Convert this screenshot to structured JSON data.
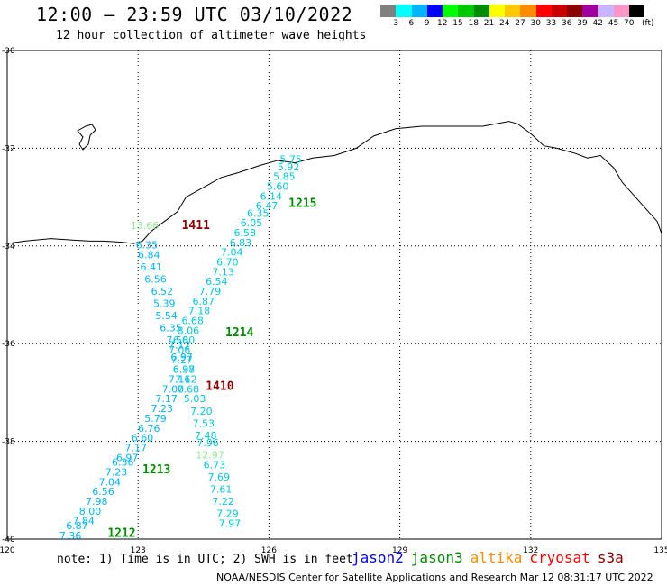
{
  "header": {
    "title": "12:00 – 23:59 UTC 03/10/2022",
    "subtitle": "12 hour collection of altimeter wave heights"
  },
  "legend": {
    "unit": "(ft)",
    "colors": [
      "#808080",
      "#00ffff",
      "#00b4ff",
      "#0000ff",
      "#00ff00",
      "#00c800",
      "#008c00",
      "#ffff00",
      "#ffc800",
      "#ff8c00",
      "#ff0000",
      "#c80000",
      "#8c0000",
      "#a000a0",
      "#c8b4ff",
      "#ff96c8",
      "#000000"
    ],
    "labels": [
      "3",
      "6",
      "9",
      "12",
      "15",
      "18",
      "21",
      "24",
      "27",
      "30",
      "33",
      "36",
      "39",
      "42",
      "45",
      "70"
    ]
  },
  "axes": {
    "lon_ticks": [
      "120",
      "123",
      "126",
      "129",
      "132",
      "135"
    ],
    "lat_ticks": [
      "-30",
      "-32",
      "-34",
      "-36",
      "-38",
      "-40"
    ]
  },
  "track_labels": [
    {
      "text": "1215",
      "color": "#008c00",
      "lon": 126.45,
      "lat": -33.2
    },
    {
      "text": "1411",
      "color": "#8c0000",
      "lon": 124.0,
      "lat": -33.65
    },
    {
      "text": "1214",
      "color": "#008c00",
      "lon": 125.0,
      "lat": -35.85
    },
    {
      "text": "1410",
      "color": "#8c0000",
      "lon": 124.55,
      "lat": -36.95
    },
    {
      "text": "1213",
      "color": "#008c00",
      "lon": 123.1,
      "lat": -38.65
    },
    {
      "text": "1212",
      "color": "#008c00",
      "lon": 122.3,
      "lat": -39.95
    }
  ],
  "chart_data": {
    "type": "scatter",
    "title": "12:00 – 23:59 UTC 03/10/2022",
    "xlim": [
      120,
      135
    ],
    "ylim": [
      -40,
      -30
    ],
    "grid": true,
    "series": [
      {
        "name": "jason2",
        "color": "#00b4ff",
        "points": [
          {
            "lon": 123.2,
            "lat": -34.05,
            "swh": "6.35"
          },
          {
            "lon": 123.25,
            "lat": -34.25,
            "swh": "6.84"
          },
          {
            "lon": 123.3,
            "lat": -34.5,
            "swh": "6.41"
          },
          {
            "lon": 123.4,
            "lat": -34.75,
            "swh": "6.56"
          },
          {
            "lon": 123.55,
            "lat": -35.0,
            "swh": "6.52"
          },
          {
            "lon": 123.6,
            "lat": -35.25,
            "swh": "5.39"
          },
          {
            "lon": 123.65,
            "lat": -35.5,
            "swh": "5.54"
          },
          {
            "lon": 123.75,
            "lat": -35.75,
            "swh": "6.35"
          },
          {
            "lon": 123.9,
            "lat": -36.0,
            "swh": "7.50"
          },
          {
            "lon": 123.95,
            "lat": -36.1,
            "swh": "7.12"
          },
          {
            "lon": 124.0,
            "lat": -36.35,
            "swh": "6.97"
          },
          {
            "lon": 124.05,
            "lat": -36.6,
            "swh": "6.37"
          },
          {
            "lon": 123.95,
            "lat": -36.8,
            "swh": "7.16"
          },
          {
            "lon": 123.8,
            "lat": -37.0,
            "swh": "7.00"
          },
          {
            "lon": 123.65,
            "lat": -37.2,
            "swh": "7.17"
          },
          {
            "lon": 123.55,
            "lat": -37.4,
            "swh": "7.23"
          },
          {
            "lon": 123.4,
            "lat": -37.6,
            "swh": "5.79"
          },
          {
            "lon": 123.25,
            "lat": -37.8,
            "swh": "6.76"
          },
          {
            "lon": 123.1,
            "lat": -38.0,
            "swh": "6.60"
          },
          {
            "lon": 122.95,
            "lat": -38.2,
            "swh": "7.17"
          },
          {
            "lon": 122.75,
            "lat": -38.4,
            "swh": "6.97"
          },
          {
            "lon": 122.65,
            "lat": -38.5,
            "swh": "6.36"
          },
          {
            "lon": 122.5,
            "lat": -38.7,
            "swh": "7.23"
          },
          {
            "lon": 122.35,
            "lat": -38.9,
            "swh": "7.04"
          },
          {
            "lon": 122.2,
            "lat": -39.1,
            "swh": "6.56"
          },
          {
            "lon": 122.05,
            "lat": -39.3,
            "swh": "7.98"
          },
          {
            "lon": 121.9,
            "lat": -39.5,
            "swh": "8.00"
          },
          {
            "lon": 121.75,
            "lat": -39.7,
            "swh": "7.84"
          },
          {
            "lon": 121.6,
            "lat": -39.8,
            "swh": "6.87"
          },
          {
            "lon": 121.45,
            "lat": -40.0,
            "swh": "7.36"
          }
        ]
      },
      {
        "name": "jason3",
        "color": "#00c8dc",
        "points": [
          {
            "lon": 126.5,
            "lat": -32.3,
            "swh": "5.75"
          },
          {
            "lon": 126.45,
            "lat": -32.45,
            "swh": "5.92"
          },
          {
            "lon": 126.35,
            "lat": -32.65,
            "swh": "5.85"
          },
          {
            "lon": 126.2,
            "lat": -32.85,
            "swh": "5.60"
          },
          {
            "lon": 126.05,
            "lat": -33.05,
            "swh": "6.14"
          },
          {
            "lon": 125.95,
            "lat": -33.25,
            "swh": "6.47"
          },
          {
            "lon": 125.75,
            "lat": -33.4,
            "swh": "6.35"
          },
          {
            "lon": 125.6,
            "lat": -33.6,
            "swh": "6.05"
          },
          {
            "lon": 125.45,
            "lat": -33.8,
            "swh": "6.58"
          },
          {
            "lon": 125.35,
            "lat": -34.0,
            "swh": "6.83"
          },
          {
            "lon": 125.15,
            "lat": -34.2,
            "swh": "7.04"
          },
          {
            "lon": 125.05,
            "lat": -34.4,
            "swh": "6.70"
          },
          {
            "lon": 124.95,
            "lat": -34.6,
            "swh": "7.13"
          },
          {
            "lon": 124.8,
            "lat": -34.8,
            "swh": "6.54"
          },
          {
            "lon": 124.65,
            "lat": -35.0,
            "swh": "7.79"
          },
          {
            "lon": 124.5,
            "lat": -35.2,
            "swh": "6.87"
          },
          {
            "lon": 124.4,
            "lat": -35.4,
            "swh": "7.18"
          },
          {
            "lon": 124.25,
            "lat": -35.6,
            "swh": "6.68"
          },
          {
            "lon": 124.15,
            "lat": -35.8,
            "swh": "8.06"
          },
          {
            "lon": 124.05,
            "lat": -36.0,
            "swh": "6.80"
          },
          {
            "lon": 123.95,
            "lat": -36.2,
            "swh": "7.06"
          },
          {
            "lon": 124.0,
            "lat": -36.4,
            "swh": "7.27"
          },
          {
            "lon": 124.05,
            "lat": -36.6,
            "swh": "6.98"
          },
          {
            "lon": 124.1,
            "lat": -36.8,
            "swh": "7.12"
          },
          {
            "lon": 124.15,
            "lat": -37.0,
            "swh": "7.68"
          },
          {
            "lon": 124.3,
            "lat": -37.2,
            "swh": "5.03"
          },
          {
            "lon": 124.45,
            "lat": -37.45,
            "swh": "7.20"
          },
          {
            "lon": 124.5,
            "lat": -37.7,
            "swh": "7.53"
          },
          {
            "lon": 124.55,
            "lat": -37.95,
            "swh": "7.48"
          },
          {
            "lon": 124.6,
            "lat": -38.1,
            "swh": "7.96"
          },
          {
            "lon": 124.75,
            "lat": -38.55,
            "swh": "6.73"
          },
          {
            "lon": 124.85,
            "lat": -38.8,
            "swh": "7.69"
          },
          {
            "lon": 124.9,
            "lat": -39.05,
            "swh": "7.61"
          },
          {
            "lon": 124.95,
            "lat": -39.3,
            "swh": "7.22"
          },
          {
            "lon": 125.05,
            "lat": -39.55,
            "swh": "7.29"
          },
          {
            "lon": 125.1,
            "lat": -39.75,
            "swh": "7.97"
          }
        ]
      },
      {
        "name": "altika",
        "color": "#90ee90",
        "points": [
          {
            "lon": 123.15,
            "lat": -33.65,
            "swh": "13.66"
          },
          {
            "lon": 124.65,
            "lat": -38.35,
            "swh": "12.97"
          }
        ]
      }
    ]
  },
  "footer": {
    "note": "note: 1) Time is in UTC; 2) SWH is in feet",
    "satellites": [
      {
        "name": "jason2",
        "color": "#0000ff"
      },
      {
        "name": "jason3",
        "color": "#008c00"
      },
      {
        "name": "altika",
        "color": "#ff8c00"
      },
      {
        "name": "cryosat",
        "color": "#ff0000"
      },
      {
        "name": "s3a",
        "color": "#8c0000"
      }
    ],
    "credit": "NOAA/NESDIS Center for Satellite Applications and Research   Mar 12 08:31:17 UTC 2022"
  }
}
